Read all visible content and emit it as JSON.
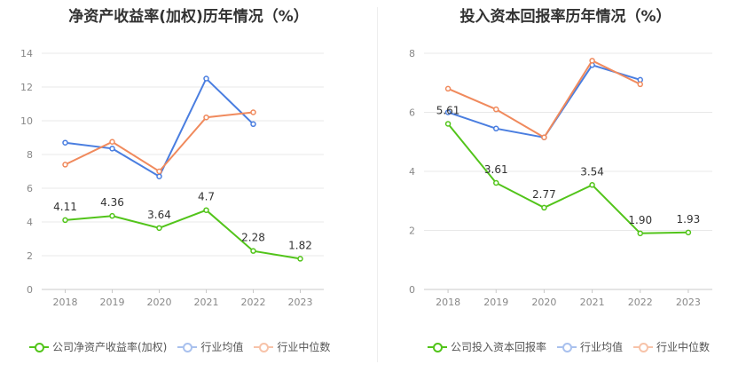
{
  "chart_data": [
    {
      "type": "line",
      "title": "净资产收益率(加权)历年情况（%）",
      "categories": [
        "2018",
        "2019",
        "2020",
        "2021",
        "2022",
        "2023"
      ],
      "ylim": [
        0,
        14
      ],
      "yticks": [
        "0",
        "2",
        "4",
        "6",
        "8",
        "10",
        "12",
        "14"
      ],
      "grid": true,
      "legend_position": "bottom",
      "series": [
        {
          "name": "公司净资产收益率(加权)",
          "color": "#52c41a",
          "values": [
            4.11,
            4.36,
            3.64,
            4.7,
            2.28,
            1.82
          ],
          "labels": [
            "4.11",
            "4.36",
            "3.64",
            "4.7",
            "2.28",
            "1.82"
          ]
        },
        {
          "name": "行业均值",
          "color": "#4a7ee0",
          "values": [
            8.7,
            8.35,
            6.7,
            12.5,
            9.8,
            null
          ]
        },
        {
          "name": "行业中位数",
          "color": "#f08a5d",
          "values": [
            7.4,
            8.75,
            7.0,
            10.2,
            10.5,
            null
          ]
        }
      ]
    },
    {
      "type": "line",
      "title": "投入资本回报率历年情况（%）",
      "categories": [
        "2018",
        "2019",
        "2020",
        "2021",
        "2022",
        "2023"
      ],
      "ylim": [
        0,
        8
      ],
      "yticks": [
        "0",
        "2",
        "4",
        "6",
        "8"
      ],
      "grid": true,
      "legend_position": "bottom",
      "series": [
        {
          "name": "公司投入资本回报率",
          "color": "#52c41a",
          "values": [
            5.61,
            3.61,
            2.77,
            3.54,
            1.9,
            1.93
          ],
          "labels": [
            "5.61",
            "3.61",
            "2.77",
            "3.54",
            "1.90",
            "1.93"
          ]
        },
        {
          "name": "行业均值",
          "color": "#4a7ee0",
          "values": [
            6.0,
            5.45,
            5.15,
            7.6,
            7.1,
            null
          ]
        },
        {
          "name": "行业中位数",
          "color": "#f08a5d",
          "values": [
            6.8,
            6.1,
            5.15,
            7.75,
            6.95,
            null
          ]
        }
      ]
    }
  ]
}
